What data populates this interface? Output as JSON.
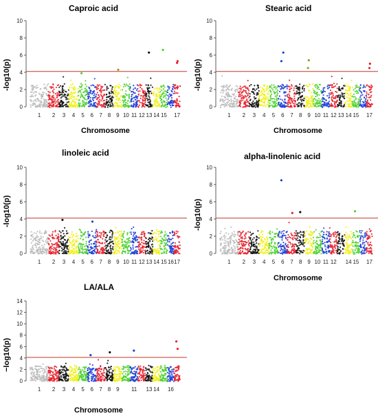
{
  "chart_data": [
    {
      "type": "scatter",
      "title": "Caproic acid",
      "xlabel": "Chromosome",
      "ylabel": "-log10(p)",
      "ylim": [
        0,
        10
      ],
      "yticks": [
        0,
        2,
        4,
        6,
        8,
        10
      ],
      "threshold": 4.1,
      "xtick_labels": [
        "1",
        "2",
        "3",
        "4",
        "5",
        "6",
        "7",
        "8",
        "9",
        "10",
        "11",
        "12",
        "13",
        "14",
        "15",
        "17"
      ],
      "colors": [
        "#bfbfbf",
        "#e8202a",
        "#111111",
        "#f2ef1a",
        "#4bd12e",
        "#1d3fd6"
      ],
      "top_hits": [
        {
          "chrom": 5,
          "y": 3.9
        },
        {
          "chrom": 9,
          "y": 4.3
        },
        {
          "chrom": 13,
          "y": 6.3
        },
        {
          "chrom": 15,
          "y": 6.6
        },
        {
          "chrom": 17,
          "y": 5.3
        },
        {
          "chrom": 17,
          "y": 5.1
        }
      ]
    },
    {
      "type": "scatter",
      "title": "Stearic acid",
      "xlabel": "Chromosome",
      "ylabel": "-log10(p)",
      "ylim": [
        0,
        10
      ],
      "yticks": [
        0,
        2,
        4,
        6,
        8,
        10
      ],
      "threshold": 4.1,
      "xtick_labels": [
        "1",
        "2",
        "3",
        "4",
        "5",
        "6",
        "7",
        "8",
        "9",
        "10",
        "11",
        "12",
        "13",
        "14",
        "15",
        "17"
      ],
      "colors": [
        "#bfbfbf",
        "#e8202a",
        "#111111",
        "#f2ef1a",
        "#4bd12e",
        "#1d3fd6"
      ],
      "top_hits": [
        {
          "chrom": 6,
          "y": 5.3
        },
        {
          "chrom": 6,
          "y": 6.3
        },
        {
          "chrom": 9,
          "y": 5.4
        },
        {
          "chrom": 9,
          "y": 4.5
        },
        {
          "chrom": 17,
          "y": 5.0
        },
        {
          "chrom": 17,
          "y": 4.5
        }
      ]
    },
    {
      "type": "scatter",
      "title": "linoleic acid",
      "xlabel": "",
      "ylabel": "-log10(p)",
      "ylim": [
        0,
        10
      ],
      "yticks": [
        0,
        2,
        4,
        6,
        8,
        10
      ],
      "threshold": 4.1,
      "xtick_labels": [
        "1",
        "2",
        "3",
        "4",
        "5",
        "6",
        "7",
        "8",
        "9",
        "10",
        "11",
        "12",
        "13",
        "14",
        "15",
        "16",
        "17"
      ],
      "colors": [
        "#bfbfbf",
        "#e8202a",
        "#111111",
        "#f2ef1a",
        "#4bd12e",
        "#1d3fd6"
      ],
      "top_hits": [
        {
          "chrom": 3,
          "y": 3.9
        },
        {
          "chrom": 6,
          "y": 3.7
        }
      ]
    },
    {
      "type": "scatter",
      "title": "alpha-linolenic acid",
      "xlabel": "Chromosome",
      "ylabel": "-log10(p)",
      "ylim": [
        0,
        10
      ],
      "yticks": [
        0,
        2,
        4,
        6,
        8,
        10
      ],
      "threshold": 4.1,
      "xtick_labels": [
        "1",
        "2",
        "3",
        "4",
        "5",
        "6",
        "7",
        "8",
        "9",
        "10",
        "11",
        "12",
        "14",
        "15",
        "17"
      ],
      "colors": [
        "#bfbfbf",
        "#e8202a",
        "#111111",
        "#f2ef1a",
        "#4bd12e",
        "#1d3fd6"
      ],
      "top_hits": [
        {
          "chrom": 6,
          "y": 8.5
        },
        {
          "chrom": 7,
          "y": 4.7
        },
        {
          "chrom": 8,
          "y": 4.8
        },
        {
          "chrom": 15,
          "y": 4.9
        }
      ]
    },
    {
      "type": "scatter",
      "title": "LA/ALA",
      "xlabel": "Chromosome",
      "ylabel": "−log10(p)",
      "ylim": [
        0,
        14
      ],
      "yticks": [
        0,
        2,
        4,
        6,
        8,
        10,
        12,
        14
      ],
      "threshold": 4.1,
      "xtick_labels": [
        "1",
        "2",
        "3",
        "4",
        "5",
        "6",
        "7",
        "8",
        "9",
        "11",
        "13",
        "14",
        "16"
      ],
      "colors": [
        "#bfbfbf",
        "#e8202a",
        "#111111",
        "#f2ef1a",
        "#4bd12e",
        "#1d3fd6"
      ],
      "top_hits": [
        {
          "chrom": 6,
          "y": 4.5
        },
        {
          "chrom": 8,
          "y": 5.0
        },
        {
          "chrom": 11,
          "y": 5.3
        },
        {
          "chrom": 17,
          "y": 6.9
        },
        {
          "chrom": 17,
          "y": 5.6
        }
      ]
    }
  ]
}
